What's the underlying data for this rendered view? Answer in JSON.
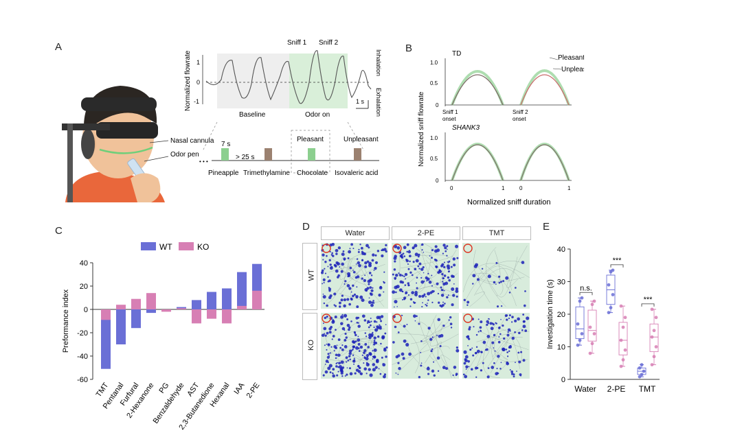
{
  "panels": {
    "A": "A",
    "B": "B",
    "C": "C",
    "D": "D",
    "E": "E"
  },
  "colors": {
    "wt": "#6a6fd6",
    "ko": "#d77fb4",
    "pleasant": "#8ccf8f",
    "unpleasant": "#9b8170",
    "green_bg": "#d9efd9",
    "gray_bg": "#eeeeee",
    "skin": "#f0c29a",
    "shirt": "#e9673b",
    "headset": "#2a2a2a",
    "track_bg": "#d8ecdc",
    "track": "#1c22b8"
  },
  "panelA": {
    "ylabel": "Normalized flowrate",
    "yticks": [
      "1",
      "0",
      "-1"
    ],
    "sniff1": "Sniff 1",
    "sniff2": "Sniff 2",
    "inhalation": "Inhalation",
    "exhalation": "Exhalation",
    "baseline": "Baseline",
    "odor_on": "Odor on",
    "scale": "1 s",
    "nasal_cannula": "Nasal cannula",
    "odor_pen": "Odor pen",
    "seven_s": "7 s",
    "gt25s": "> 25 s",
    "dots": "• • •",
    "pleasant": "Pleasant",
    "unpleasant": "Unpleasant",
    "odors": [
      "Pineapple",
      "Trimethylamine",
      "Chocolate",
      "Isovaleric acid"
    ]
  },
  "panelB": {
    "td": "TD",
    "shank3": "SHANK3",
    "ylabel": "Normalized sniff flowrate",
    "xlabel": "Normalized sniff duration",
    "legend_pleasant": "Pleasant",
    "legend_unpleasant": "Unpleasant",
    "yticks": [
      "1.0",
      "0.5",
      "0"
    ],
    "sniff1_onset_line1": "Sniff 1",
    "sniff1_onset_line2": "onset",
    "sniff2_onset_line1": "Sniff 2",
    "sniff2_onset_line2": "onset",
    "xtick_0a": "0",
    "xtick_1a": "1",
    "xtick_0b": "0",
    "xtick_1b": "1"
  },
  "panelD": {
    "cols": [
      "Water",
      "2-PE",
      "TMT"
    ],
    "rows": [
      "WT",
      "KO"
    ]
  },
  "chart_data": [
    {
      "type": "bar",
      "ylabel": "Preformance index",
      "ylim": [
        -60,
        40
      ],
      "yticks": [
        40,
        20,
        0,
        -20,
        -40,
        -60
      ],
      "categories": [
        "TMT",
        "Pentanal",
        "Furfural",
        "2-Hexanone",
        "PG",
        "Benzaldehyde",
        "AST",
        "2,3-Butanedione",
        "Hexanal",
        "IAA",
        "2-PE"
      ],
      "series": [
        {
          "name": "WT",
          "values": [
            -51,
            -30,
            -16,
            -3,
            0,
            2,
            8,
            15,
            18,
            32,
            39
          ]
        },
        {
          "name": "KO",
          "values": [
            -9,
            4,
            9,
            14,
            -2,
            1,
            -12,
            -8,
            -12,
            3,
            16
          ]
        }
      ],
      "legend": "top"
    },
    {
      "type": "box",
      "ylabel": "Investigation  time (s)",
      "ylim": [
        0,
        40
      ],
      "yticks": [
        0,
        10,
        20,
        30,
        40
      ],
      "categories": [
        "Water",
        "2-PE",
        "TMT"
      ],
      "series": [
        {
          "name": "WT",
          "values": [
            [
              10.5,
              12,
              14,
              17,
              24,
              25
            ],
            [
              20.5,
              22,
              26,
              29,
              33,
              33.5
            ],
            [
              0.8,
              1.5,
              2.5,
              3.5,
              4.5
            ]
          ]
        },
        {
          "name": "KO",
          "values": [
            [
              8,
              11,
              14,
              16,
              23,
              24
            ],
            [
              4,
              6,
              9,
              12,
              16,
              19,
              22.5
            ],
            [
              4.5,
              7,
              10,
              13,
              15,
              19,
              21.5
            ]
          ]
        }
      ],
      "significance": [
        "n.s.",
        "***",
        "***"
      ]
    }
  ]
}
